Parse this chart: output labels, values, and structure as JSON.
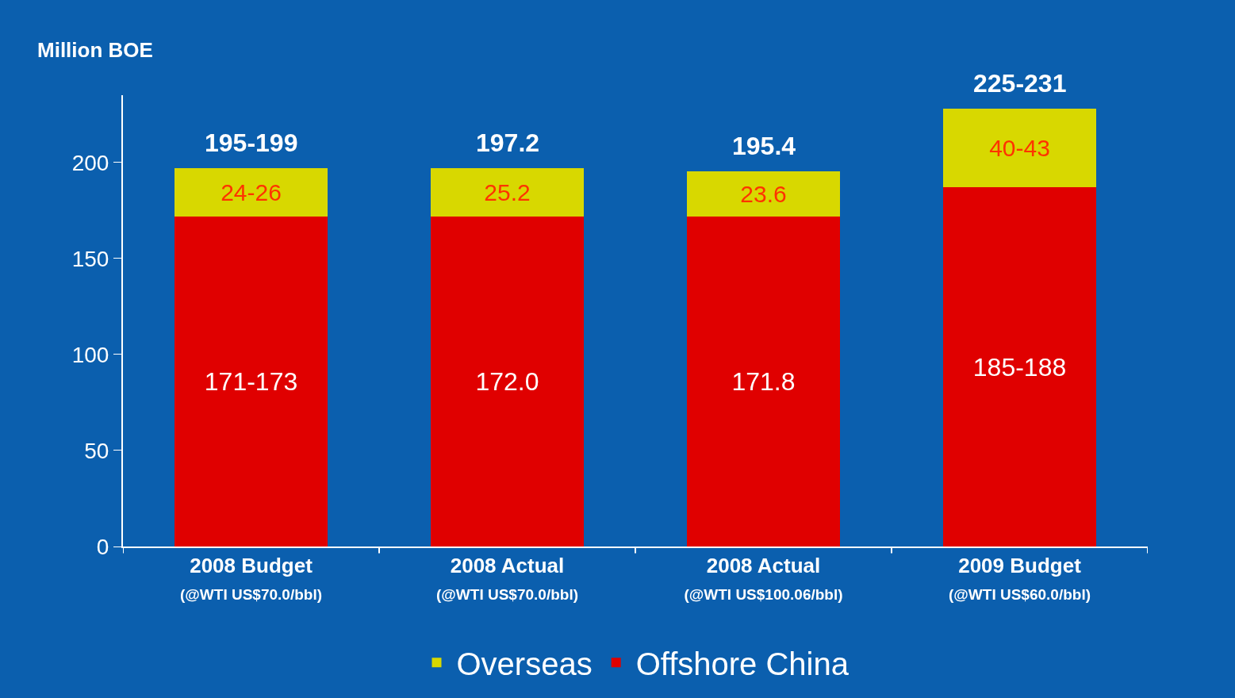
{
  "chart_data": {
    "type": "bar",
    "stacked": true,
    "ylabel": "Million BOE",
    "categories": [
      "2008 Budget\n(@WTI US$70.0/bbl)",
      "2008 Actual\n(@WTI US$70.0/bbl)",
      "2008 Actual\n(@WTI US$100.06/bbl)",
      "2009 Budget\n(@WTI US$60.0/bbl)"
    ],
    "series": [
      {
        "name": "Offshore China",
        "color": "#e00000",
        "values": [
          172,
          172.0,
          171.8,
          187
        ],
        "value_labels": [
          "171-173",
          "172.0",
          "171.8",
          "185-188"
        ]
      },
      {
        "name": "Overseas",
        "color": "#d8d800",
        "values": [
          25,
          25.2,
          23.6,
          41
        ],
        "value_labels": [
          "24-26",
          "25.2",
          "23.6",
          "40-43"
        ]
      }
    ],
    "totals": [
      "195-199",
      "197.2",
      "195.4",
      "225-231"
    ],
    "ylim": [
      0,
      235
    ],
    "yticks": [
      0,
      50,
      100,
      150,
      200
    ],
    "grid": false,
    "legend": "bottom"
  }
}
